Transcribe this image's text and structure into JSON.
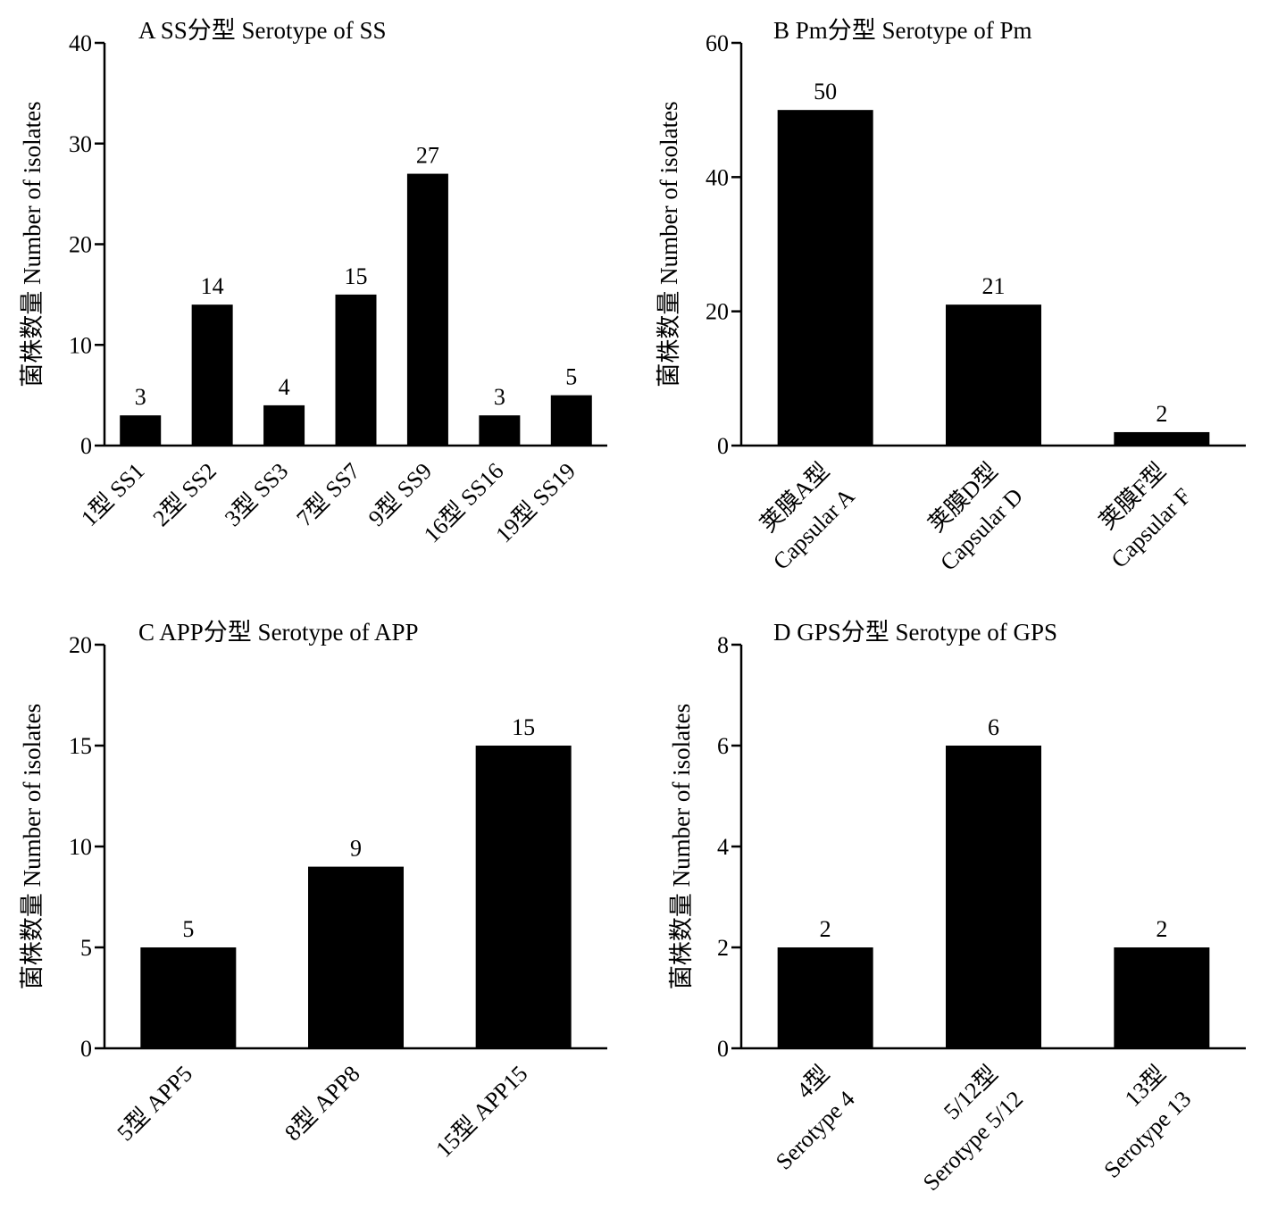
{
  "chart_data": [
    {
      "type": "bar",
      "title": "A  SS分型 Serotype of SS",
      "ylabel": "菌株数量 Number of isolates",
      "ylim": [
        0,
        40
      ],
      "yticks": [
        0,
        10,
        20,
        30,
        40
      ],
      "categories": [
        [
          "1型 SS1"
        ],
        [
          "2型 SS2"
        ],
        [
          "3型 SS3"
        ],
        [
          "7型 SS7"
        ],
        [
          "9型 SS9"
        ],
        [
          "16型 SS16"
        ],
        [
          "19型 SS19"
        ]
      ],
      "values": [
        3,
        14,
        4,
        15,
        27,
        3,
        5
      ],
      "value_labels": [
        "3",
        "14",
        "4",
        "15",
        "27",
        "3",
        "5"
      ],
      "bar_color": "#000000"
    },
    {
      "type": "bar",
      "title": "B  Pm分型 Serotype of Pm",
      "ylabel": "菌株数量 Number of isolates",
      "ylim": [
        0,
        60
      ],
      "yticks": [
        0,
        20,
        40,
        60
      ],
      "categories": [
        [
          "荚膜A型",
          "Capsular A"
        ],
        [
          "荚膜D型",
          "Capsular D"
        ],
        [
          "荚膜F型",
          "Capsular F"
        ]
      ],
      "values": [
        50,
        21,
        2
      ],
      "value_labels": [
        "50",
        "21",
        "2"
      ],
      "bar_color": "#000000"
    },
    {
      "type": "bar",
      "title": "C  APP分型 Serotype of APP",
      "ylabel": "菌株数量 Number of isolates",
      "ylim": [
        0,
        20
      ],
      "yticks": [
        0,
        5,
        10,
        15,
        20
      ],
      "categories": [
        [
          "5型 APP5"
        ],
        [
          "8型 APP8"
        ],
        [
          "15型 APP15"
        ]
      ],
      "values": [
        5,
        9,
        15
      ],
      "value_labels": [
        "5",
        "9",
        "15"
      ],
      "bar_color": "#000000"
    },
    {
      "type": "bar",
      "title": "D  GPS分型 Serotype of GPS",
      "ylabel": "菌株数量 Number of isolates",
      "ylim": [
        0,
        8
      ],
      "yticks": [
        0,
        2,
        4,
        6,
        8
      ],
      "categories": [
        [
          "4型",
          "Serotype 4"
        ],
        [
          "5/12型",
          "Serotype 5/12"
        ],
        [
          "13型",
          "Serotype 13"
        ]
      ],
      "values": [
        2,
        6,
        2
      ],
      "value_labels": [
        "2",
        "6",
        "2"
      ],
      "bar_color": "#000000"
    }
  ]
}
